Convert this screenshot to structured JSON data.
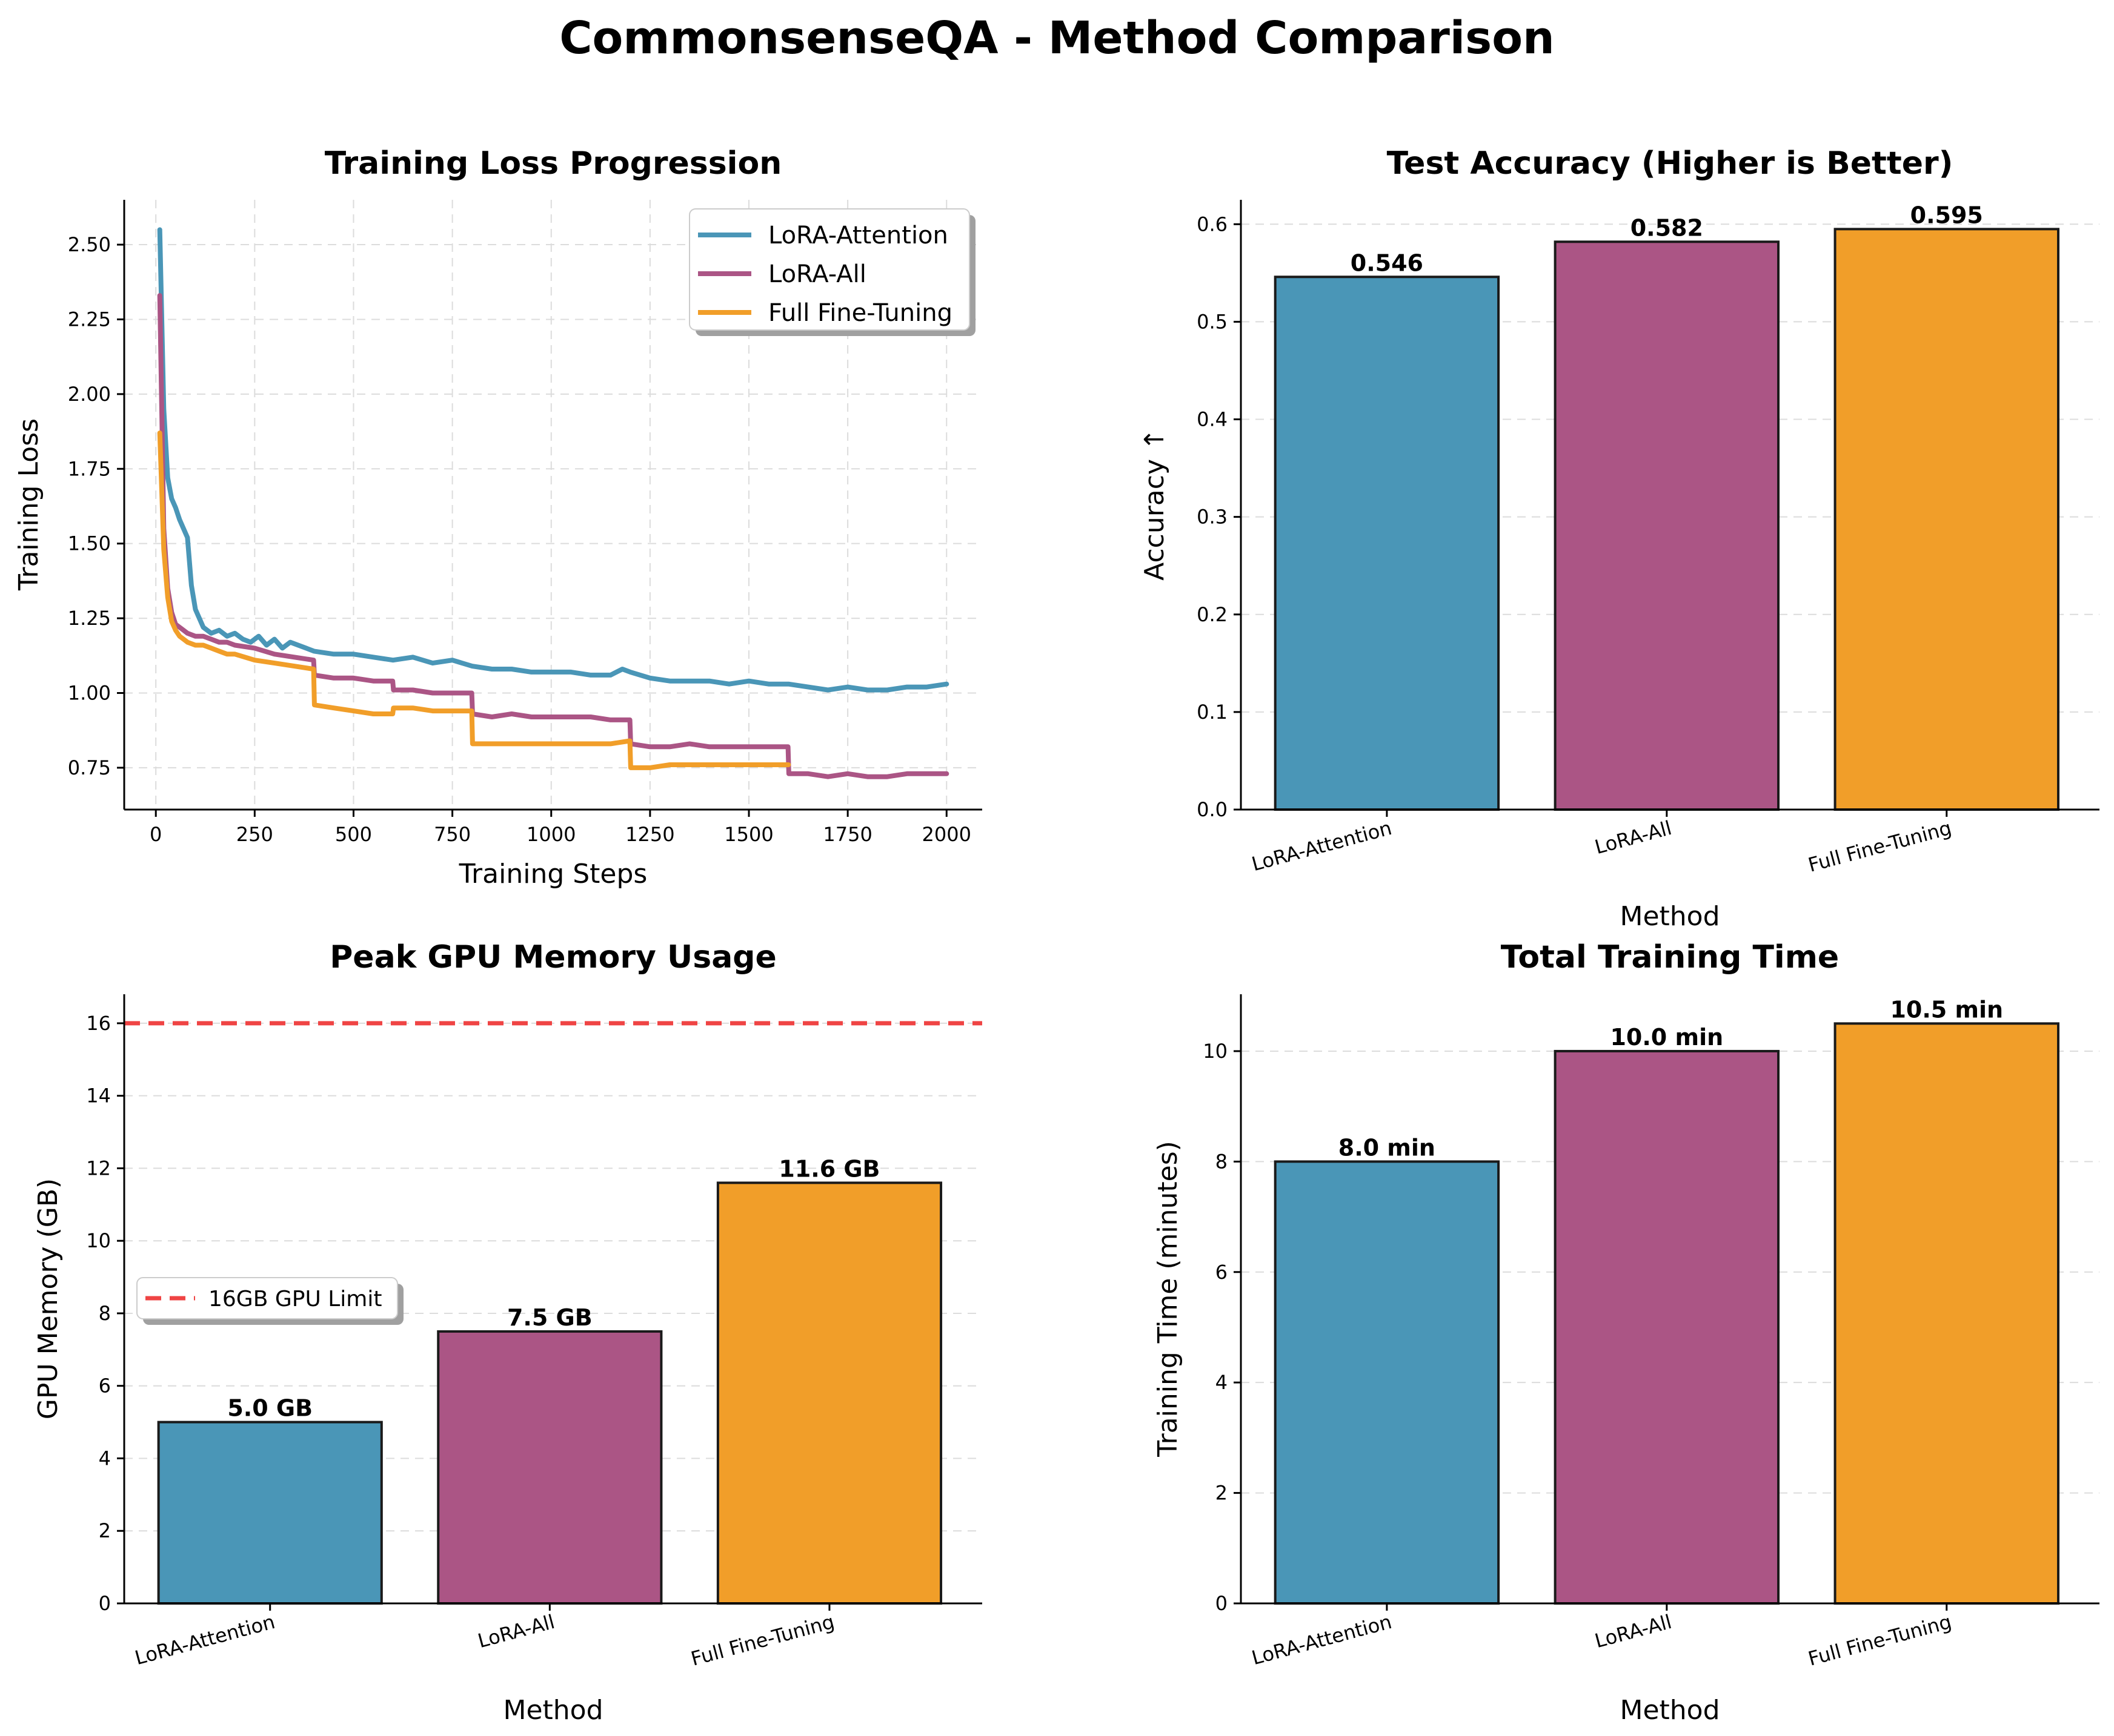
{
  "figure": {
    "title": "CommonsenseQA - Method Comparison"
  },
  "colors": {
    "LoRA-Attention": "#4a96b7",
    "LoRA-All": "#ab5585",
    "Full Fine-Tuning": "#f19e29",
    "limit": "#ef4444",
    "grid": "#dcdcdc"
  },
  "chart_data": [
    {
      "type": "line",
      "title": "Training Loss Progression",
      "xlabel": "Training Steps",
      "ylabel": "Training Loss",
      "xlim": [
        -80,
        2090
      ],
      "ylim": [
        0.61,
        2.65
      ],
      "xticks": [
        0,
        250,
        500,
        750,
        1000,
        1250,
        1500,
        1750,
        2000
      ],
      "yticks": [
        0.75,
        1.0,
        1.25,
        1.5,
        1.75,
        2.0,
        2.25,
        2.5
      ],
      "ytick_labels": [
        "0.75",
        "1.00",
        "1.25",
        "1.50",
        "1.75",
        "2.00",
        "2.25",
        "2.50"
      ],
      "grid": true,
      "legend": "top-right",
      "series": [
        {
          "name": "LoRA-Attention",
          "x": [
            10,
            20,
            30,
            40,
            50,
            60,
            70,
            80,
            90,
            100,
            120,
            140,
            160,
            180,
            200,
            220,
            240,
            260,
            280,
            300,
            320,
            340,
            360,
            380,
            400,
            450,
            500,
            550,
            600,
            650,
            700,
            750,
            800,
            850,
            900,
            950,
            1000,
            1050,
            1100,
            1150,
            1180,
            1200,
            1250,
            1300,
            1350,
            1400,
            1450,
            1500,
            1550,
            1600,
            1650,
            1700,
            1750,
            1800,
            1850,
            1900,
            1950,
            2000
          ],
          "y": [
            2.55,
            1.95,
            1.72,
            1.65,
            1.62,
            1.58,
            1.55,
            1.52,
            1.36,
            1.28,
            1.22,
            1.2,
            1.21,
            1.19,
            1.2,
            1.18,
            1.17,
            1.19,
            1.16,
            1.18,
            1.15,
            1.17,
            1.16,
            1.15,
            1.14,
            1.13,
            1.13,
            1.12,
            1.11,
            1.12,
            1.1,
            1.11,
            1.09,
            1.08,
            1.08,
            1.07,
            1.07,
            1.07,
            1.06,
            1.06,
            1.08,
            1.07,
            1.05,
            1.04,
            1.04,
            1.04,
            1.03,
            1.04,
            1.03,
            1.03,
            1.02,
            1.01,
            1.02,
            1.01,
            1.01,
            1.02,
            1.02,
            1.03
          ]
        },
        {
          "name": "LoRA-All",
          "x": [
            10,
            20,
            30,
            40,
            50,
            60,
            70,
            80,
            100,
            120,
            140,
            160,
            180,
            200,
            250,
            300,
            350,
            399,
            401,
            450,
            500,
            550,
            599,
            601,
            650,
            700,
            750,
            799,
            801,
            850,
            900,
            950,
            1000,
            1050,
            1100,
            1150,
            1199,
            1201,
            1250,
            1300,
            1350,
            1400,
            1450,
            1500,
            1550,
            1599,
            1601,
            1650,
            1700,
            1750,
            1800,
            1850,
            1900,
            1950,
            2000
          ],
          "y": [
            2.33,
            1.55,
            1.35,
            1.27,
            1.23,
            1.22,
            1.21,
            1.2,
            1.19,
            1.19,
            1.18,
            1.17,
            1.17,
            1.16,
            1.15,
            1.13,
            1.12,
            1.11,
            1.06,
            1.05,
            1.05,
            1.04,
            1.04,
            1.01,
            1.01,
            1.0,
            1.0,
            1.0,
            0.93,
            0.92,
            0.93,
            0.92,
            0.92,
            0.92,
            0.92,
            0.91,
            0.91,
            0.83,
            0.82,
            0.82,
            0.83,
            0.82,
            0.82,
            0.82,
            0.82,
            0.82,
            0.73,
            0.73,
            0.72,
            0.73,
            0.72,
            0.72,
            0.73,
            0.73,
            0.73
          ]
        },
        {
          "name": "Full Fine-Tuning",
          "x": [
            10,
            20,
            30,
            40,
            50,
            60,
            70,
            80,
            100,
            120,
            140,
            160,
            180,
            200,
            250,
            300,
            350,
            399,
            401,
            450,
            500,
            550,
            599,
            601,
            650,
            700,
            750,
            799,
            801,
            850,
            900,
            950,
            1000,
            1050,
            1100,
            1150,
            1199,
            1201,
            1250,
            1300,
            1350,
            1400,
            1450,
            1500,
            1550,
            1600
          ],
          "y": [
            1.87,
            1.48,
            1.32,
            1.24,
            1.21,
            1.19,
            1.18,
            1.17,
            1.16,
            1.16,
            1.15,
            1.14,
            1.13,
            1.13,
            1.11,
            1.1,
            1.09,
            1.08,
            0.96,
            0.95,
            0.94,
            0.93,
            0.93,
            0.95,
            0.95,
            0.94,
            0.94,
            0.94,
            0.83,
            0.83,
            0.83,
            0.83,
            0.83,
            0.83,
            0.83,
            0.83,
            0.84,
            0.75,
            0.75,
            0.76,
            0.76,
            0.76,
            0.76,
            0.76,
            0.76,
            0.76
          ]
        }
      ]
    },
    {
      "type": "bar",
      "title": "Test Accuracy (Higher is Better)",
      "xlabel": "Method",
      "ylabel": "Accuracy ↑",
      "categories": [
        "LoRA-Attention",
        "LoRA-All",
        "Full Fine-Tuning"
      ],
      "values": [
        0.546,
        0.582,
        0.595
      ],
      "value_labels": [
        "0.546",
        "0.582",
        "0.595"
      ],
      "ylim": [
        0,
        0.625
      ],
      "yticks": [
        0.0,
        0.1,
        0.2,
        0.3,
        0.4,
        0.5,
        0.6
      ],
      "ytick_labels": [
        "0.0",
        "0.1",
        "0.2",
        "0.3",
        "0.4",
        "0.5",
        "0.6"
      ],
      "grid": true
    },
    {
      "type": "bar",
      "title": "Peak GPU Memory Usage",
      "xlabel": "Method",
      "ylabel": "GPU Memory (GB)",
      "categories": [
        "LoRA-Attention",
        "LoRA-All",
        "Full Fine-Tuning"
      ],
      "values": [
        5.0,
        7.5,
        11.6
      ],
      "value_labels": [
        "5.0 GB",
        "7.5 GB",
        "11.6 GB"
      ],
      "ylim": [
        0,
        16.8
      ],
      "yticks": [
        0,
        2,
        4,
        6,
        8,
        10,
        12,
        14,
        16
      ],
      "ytick_labels": [
        "0",
        "2",
        "4",
        "6",
        "8",
        "10",
        "12",
        "14",
        "16"
      ],
      "reference_line": {
        "y": 16,
        "label": "16GB GPU Limit"
      },
      "legend": "center-left",
      "grid": true
    },
    {
      "type": "bar",
      "title": "Total Training Time",
      "xlabel": "Method",
      "ylabel": "Training Time (minutes)",
      "categories": [
        "LoRA-Attention",
        "LoRA-All",
        "Full Fine-Tuning"
      ],
      "values": [
        8.0,
        10.0,
        10.5
      ],
      "value_labels": [
        "8.0 min",
        "10.0 min",
        "10.5 min"
      ],
      "ylim": [
        0,
        11.03
      ],
      "yticks": [
        0,
        2,
        4,
        6,
        8,
        10
      ],
      "ytick_labels": [
        "0",
        "2",
        "4",
        "6",
        "8",
        "10"
      ],
      "grid": true
    }
  ]
}
